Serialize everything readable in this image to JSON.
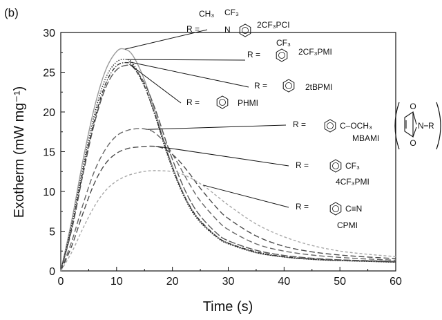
{
  "panel_label": "(b)",
  "chart_data": {
    "type": "line",
    "xlabel": "Time (s)",
    "ylabel": "Exotherm (mW mg⁻¹)",
    "xlim": [
      0,
      60
    ],
    "ylim": [
      0,
      30
    ],
    "x_ticks": [
      "0",
      "10",
      "20",
      "30",
      "40",
      "50",
      "60"
    ],
    "y_ticks": [
      "0",
      "5",
      "10",
      "15",
      "20",
      "25",
      "30"
    ],
    "grid": false,
    "series": [
      {
        "name": "2CF3PCI",
        "style": "solid",
        "color": "#9a9a9a",
        "x": [
          0,
          2,
          4,
          6,
          8,
          10,
          11.5,
          13,
          15,
          17,
          19,
          21,
          23,
          25,
          28,
          30,
          35,
          40,
          45,
          50,
          55,
          60
        ],
        "y": [
          0,
          6.5,
          14,
          20.5,
          25.2,
          27.6,
          27.9,
          27.0,
          24.0,
          19.8,
          15.2,
          11.3,
          8.3,
          6.2,
          4.3,
          3.5,
          2.3,
          1.75,
          1.45,
          1.3,
          1.2,
          1.1
        ]
      },
      {
        "name": "2CF3PMI",
        "style": "dotted",
        "color": "#222222",
        "x": [
          0,
          2,
          4,
          6,
          8,
          10,
          11.8,
          13,
          15,
          17,
          19,
          21,
          23,
          25,
          28,
          30,
          35,
          40,
          45,
          50,
          55,
          60
        ],
        "y": [
          0,
          6.0,
          13.2,
          19.6,
          24.2,
          26.3,
          26.6,
          26.0,
          23.3,
          19.3,
          14.8,
          11.0,
          8.1,
          6.1,
          4.2,
          3.4,
          2.3,
          1.75,
          1.45,
          1.3,
          1.2,
          1.1
        ]
      },
      {
        "name": "2tBPMI",
        "style": "dashdot",
        "color": "#333333",
        "x": [
          0,
          2,
          4,
          6,
          8,
          10,
          12,
          13,
          15,
          17,
          19,
          21,
          23,
          25,
          28,
          30,
          35,
          40,
          45,
          50,
          55,
          60
        ],
        "y": [
          0,
          5.6,
          12.6,
          18.9,
          23.5,
          25.8,
          26.2,
          25.7,
          23.2,
          19.4,
          15.0,
          11.2,
          8.3,
          6.3,
          4.3,
          3.5,
          2.4,
          1.8,
          1.5,
          1.35,
          1.25,
          1.15
        ]
      },
      {
        "name": "PHMI",
        "style": "longdash",
        "color": "#555555",
        "x": [
          0,
          2,
          4,
          6,
          8,
          10,
          12,
          13,
          15,
          17,
          19,
          21,
          23,
          25,
          28,
          30,
          35,
          40,
          45,
          50,
          55,
          60
        ],
        "y": [
          0,
          5.3,
          12.2,
          18.5,
          23.0,
          25.3,
          25.9,
          25.6,
          23.6,
          20.2,
          16.0,
          12.2,
          9.1,
          6.9,
          4.7,
          3.8,
          2.6,
          1.95,
          1.6,
          1.4,
          1.3,
          1.2
        ]
      },
      {
        "name": "MBAMI",
        "style": "dash",
        "color": "#666666",
        "x": [
          0,
          2,
          4,
          6,
          8,
          10,
          12,
          14,
          15.5,
          17,
          19,
          21,
          23,
          25,
          28,
          30,
          35,
          40,
          45,
          50,
          55,
          60
        ],
        "y": [
          0,
          3.8,
          8.4,
          12.5,
          15.3,
          17.0,
          17.7,
          17.9,
          17.8,
          17.3,
          15.8,
          13.5,
          11.0,
          8.8,
          6.4,
          5.2,
          3.4,
          2.5,
          2.0,
          1.7,
          1.5,
          1.35
        ]
      },
      {
        "name": "4CF3PMI",
        "style": "dash",
        "color": "#4a4a4a",
        "x": [
          0,
          2,
          4,
          6,
          8,
          10,
          12,
          14,
          16,
          17.5,
          19,
          21,
          23,
          25,
          28,
          30,
          35,
          40,
          45,
          50,
          55,
          60
        ],
        "y": [
          0,
          3.2,
          7.3,
          11.0,
          13.5,
          14.8,
          15.4,
          15.6,
          15.7,
          15.6,
          15.2,
          14.0,
          12.3,
          10.4,
          7.9,
          6.6,
          4.4,
          3.1,
          2.4,
          2.0,
          1.75,
          1.55
        ]
      },
      {
        "name": "CPMI",
        "style": "shortdash",
        "color": "#a8a8a8",
        "x": [
          0,
          2,
          4,
          6,
          8,
          10,
          12,
          14,
          16,
          18,
          20,
          22,
          24,
          26,
          28,
          30,
          35,
          40,
          45,
          50,
          55,
          60
        ],
        "y": [
          0,
          2.4,
          5.4,
          8.1,
          10.1,
          11.3,
          12.0,
          12.4,
          12.6,
          12.6,
          12.5,
          12.1,
          11.4,
          10.5,
          9.4,
          8.3,
          5.9,
          4.3,
          3.2,
          2.5,
          2.1,
          1.8
        ]
      }
    ],
    "annotations": [
      {
        "id": "2CF3PCI",
        "prefix": "R =",
        "label": "2CF₃PCI",
        "methyl": "CH₃",
        "substituent": "CF₃",
        "n_atom": "N",
        "target": [
          11.5,
          27.9
        ]
      },
      {
        "id": "2CF3PMI",
        "prefix": "R =",
        "label": "2CF₃PMI",
        "substituent": "CF₃",
        "target": [
          11.8,
          26.6
        ]
      },
      {
        "id": "2tBPMI",
        "prefix": "R =",
        "label": "2tBPMI",
        "target": [
          12.2,
          26.3
        ]
      },
      {
        "id": "PHMI",
        "prefix": "R =",
        "label": "PHMI",
        "target": [
          12.3,
          26.0
        ]
      },
      {
        "id": "MBAMI",
        "prefix": "R =",
        "label": "MBAMI",
        "substituent": "C–OCH₃",
        "target": [
          15.5,
          17.8
        ]
      },
      {
        "id": "4CF3PMI",
        "prefix": "R =",
        "label": "4CF₃PMI",
        "substituent": "CF₃",
        "target": [
          17.0,
          15.7
        ]
      },
      {
        "id": "CPMI",
        "prefix": "R =",
        "label": "CPMI",
        "substituent": "C≡N",
        "target": [
          25.5,
          10.8
        ]
      }
    ],
    "maleimide_core": {
      "n_label": "N",
      "r_label": "R"
    }
  }
}
